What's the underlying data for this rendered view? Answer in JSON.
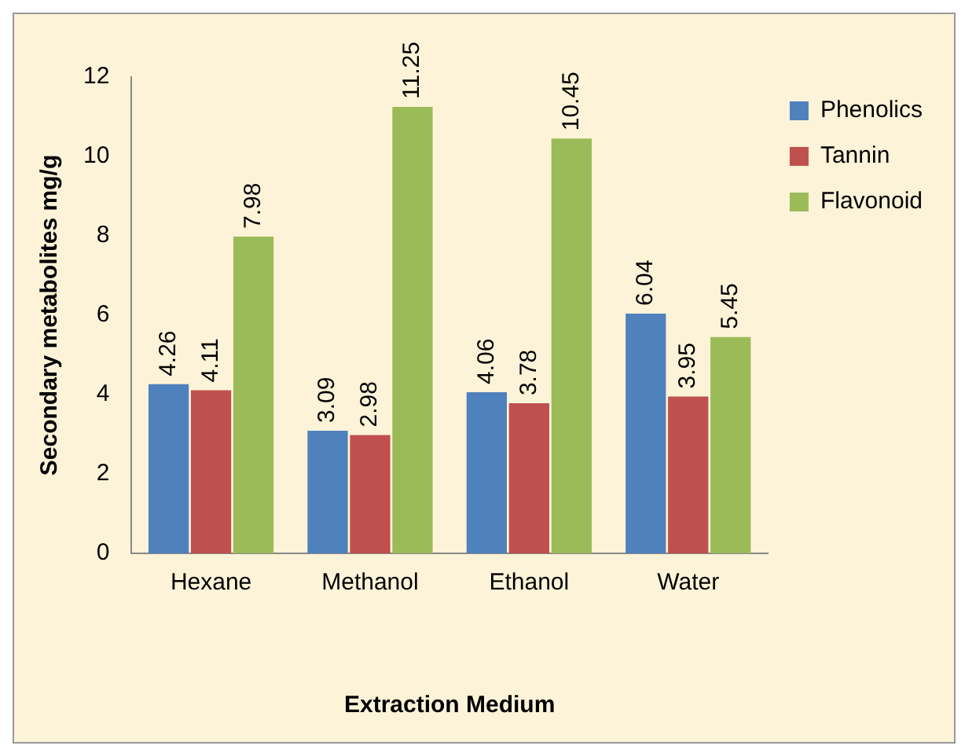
{
  "chart_data": {
    "type": "bar",
    "xlabel": "Extraction Medium",
    "ylabel": "Secondary metabolites mg/g",
    "categories": [
      "Hexane",
      "Methanol",
      "Ethanol",
      "Water"
    ],
    "series": [
      {
        "name": "Phenolics",
        "color": "#4f81bd",
        "values": [
          4.26,
          3.09,
          4.06,
          6.04
        ]
      },
      {
        "name": "Tannin",
        "color": "#c0504d",
        "values": [
          4.11,
          2.98,
          3.78,
          3.95
        ]
      },
      {
        "name": "Flavonoid",
        "color": "#9bbb59",
        "values": [
          7.98,
          11.25,
          10.45,
          5.45
        ]
      }
    ],
    "ylim": [
      0,
      12
    ],
    "yticks": [
      0,
      2,
      4,
      6,
      8,
      10,
      12
    ],
    "grid": false,
    "legend": "top right",
    "data_labels": true
  }
}
